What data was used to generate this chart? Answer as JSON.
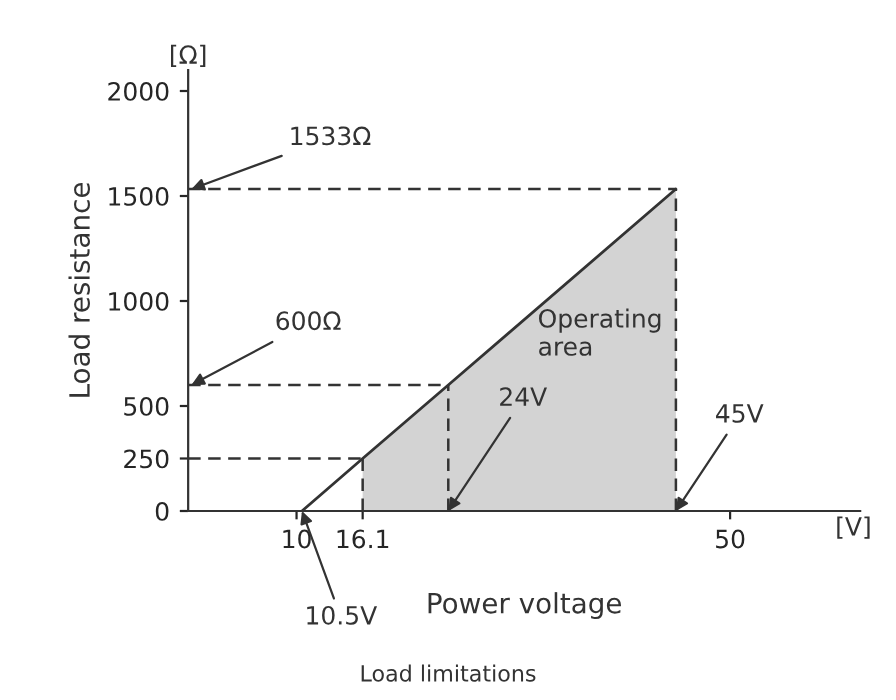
{
  "chart_data": {
    "type": "line",
    "xlabel": "Power voltage",
    "ylabel": "Load resistance",
    "xlim": [
      0,
      62
    ],
    "ylim": [
      0,
      2100
    ],
    "xticks": [
      10,
      16.1,
      50
    ],
    "yticks": [
      0,
      250,
      500,
      1000,
      1500,
      2000
    ],
    "series": [
      {
        "type": "area",
        "color": "#d3d3d3",
        "x": [
          16.1,
          24,
          45
        ],
        "values": [
          250,
          600,
          1533
        ]
      },
      {
        "color": "#333333",
        "x": [
          10.5,
          16.1,
          24,
          45
        ],
        "values": [
          0,
          250,
          600,
          1533
        ]
      }
    ],
    "ref_lines": [
      {
        "axis": "y",
        "value": 1533,
        "line_style": "dashed",
        "color": "#333333"
      },
      {
        "axis": "y",
        "value": 600,
        "line_style": "dashed",
        "color": "#333333"
      },
      {
        "axis": "y",
        "value": 250,
        "line_style": "dashed",
        "color": "#333333"
      },
      {
        "axis": "x",
        "value": 16.1,
        "line_style": "dashed",
        "color": "#333333"
      },
      {
        "axis": "x",
        "value": 24,
        "line_style": "dashed",
        "color": "#333333"
      },
      {
        "axis": "x",
        "value": 45,
        "line_style": "dashed",
        "color": "#333333"
      }
    ],
    "annotations": [
      {
        "text": "1533Ω",
        "x": 0.3,
        "y": 1533
      },
      {
        "text": "600Ω",
        "x": 0.3,
        "y": 600
      },
      {
        "text": "24V",
        "x": 24,
        "y": 0
      },
      {
        "text": "45V",
        "x": 45,
        "y": 0
      },
      {
        "text": "10.5V",
        "x": 10.5,
        "y": 0
      },
      "Operating\narea",
      "[Ω]",
      "[V]",
      "Load limitations"
    ],
    "grid": false
  }
}
